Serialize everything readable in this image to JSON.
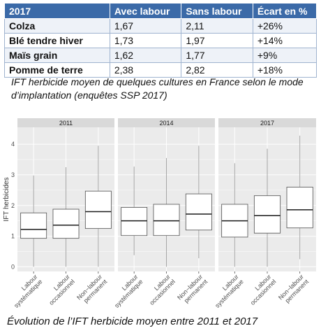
{
  "table": {
    "headers": [
      "2017",
      "Avec labour",
      "Sans labour",
      "Écart en %"
    ],
    "rows": [
      [
        "Colza",
        "1,67",
        "2,11",
        "+26%"
      ],
      [
        "Blé tendre hiver",
        "1,73",
        "1,97",
        "+14%"
      ],
      [
        "Maïs grain",
        "1,62",
        "1,77",
        "+9%"
      ],
      [
        "Pomme de terre",
        "2,38",
        "2,82",
        "+18%"
      ]
    ],
    "colors": {
      "header_bg": "#3b6aa8",
      "header_text": "#ffffff"
    }
  },
  "caption_table": "IFT herbicide moyen de quelques cultures en France selon le mode d’implantation (enquêtes SSP 2017)",
  "caption_chart": "Évolution de l’IFT herbicide moyen entre 2011 et 2017",
  "chart_data": {
    "type": "boxplot",
    "ylabel": "IFT herbicides",
    "ylim": [
      -0.15,
      4.55
    ],
    "yticks": [
      0,
      1,
      2,
      3,
      4
    ],
    "grid": true,
    "facets": [
      "2011",
      "2014",
      "2017"
    ],
    "categories": [
      "Labour systématique",
      "Labour occasionnel",
      "Non−labour permanent"
    ],
    "category_labels": [
      [
        "Labour",
        "systématique"
      ],
      [
        "Labour",
        "occasionnel"
      ],
      [
        "Non−labour",
        "permanent"
      ]
    ],
    "series": [
      {
        "facet": "2011",
        "boxes": [
          {
            "min": 0.0,
            "q1": 0.93,
            "median": 1.22,
            "q3": 1.76,
            "max": 2.98
          },
          {
            "min": 0.0,
            "q1": 0.93,
            "median": 1.36,
            "q3": 1.88,
            "max": 3.25
          },
          {
            "min": 0.0,
            "q1": 1.25,
            "median": 1.8,
            "q3": 2.47,
            "max": 3.95
          }
        ]
      },
      {
        "facet": "2014",
        "boxes": [
          {
            "min": 0.38,
            "q1": 1.02,
            "median": 1.5,
            "q3": 1.94,
            "max": 3.27
          },
          {
            "min": 0.0,
            "q1": 1.02,
            "median": 1.5,
            "q3": 2.04,
            "max": 3.55
          },
          {
            "min": 0.28,
            "q1": 1.2,
            "median": 1.72,
            "q3": 2.38,
            "max": 3.95
          }
        ]
      },
      {
        "facet": "2017",
        "boxes": [
          {
            "min": 0.0,
            "q1": 0.97,
            "median": 1.5,
            "q3": 2.04,
            "max": 3.38
          },
          {
            "min": 0.0,
            "q1": 1.1,
            "median": 1.67,
            "q3": 2.32,
            "max": 3.85
          },
          {
            "min": 0.25,
            "q1": 1.27,
            "median": 1.86,
            "q3": 2.6,
            "max": 4.28
          }
        ]
      }
    ],
    "colors": {
      "panel_bg": "#ebebeb",
      "strip_bg": "#d9d9d9",
      "grid": "#ffffff",
      "box_fill": "#ffffff",
      "box_line": "#4d4d4d",
      "whisker": "#a6a6a6"
    }
  }
}
